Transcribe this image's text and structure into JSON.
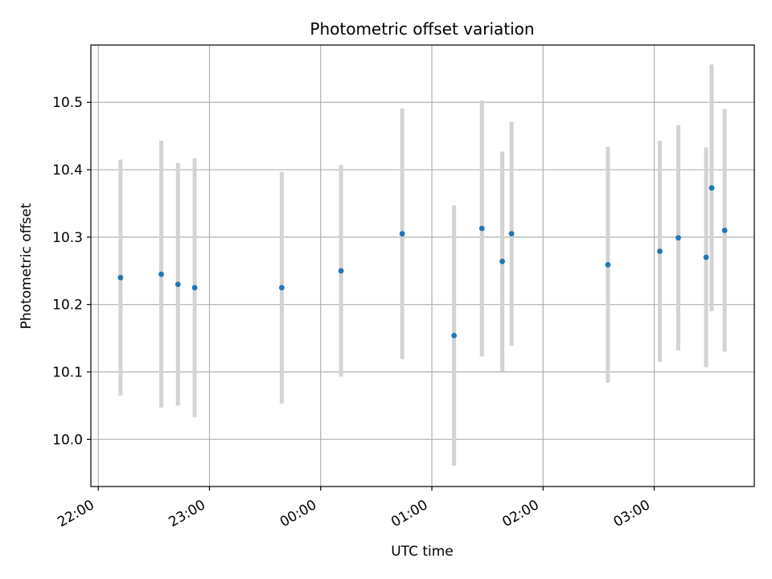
{
  "chart_data": {
    "type": "scatter",
    "title": "Photometric offset variation",
    "xlabel": "UTC time",
    "ylabel": "Photometric offset",
    "x_unit": "HH:MM UTC",
    "xlim": [
      "21:56",
      "03:54"
    ],
    "ylim": [
      9.93,
      10.585
    ],
    "x_ticks": [
      "22:00",
      "23:00",
      "00:00",
      "01:00",
      "02:00",
      "03:00"
    ],
    "y_ticks": [
      10.0,
      10.1,
      10.2,
      10.3,
      10.4,
      10.5
    ],
    "y_tick_labels": [
      "10.0",
      "10.1",
      "10.2",
      "10.3",
      "10.4",
      "10.5"
    ],
    "grid": true,
    "point_color": "#1f77b4",
    "errorbar_color": "#d3d3d3",
    "points": [
      {
        "x": "22:12",
        "y": 10.24,
        "err": 0.175
      },
      {
        "x": "22:34",
        "y": 10.245,
        "err": 0.198
      },
      {
        "x": "22:43",
        "y": 10.23,
        "err": 0.18
      },
      {
        "x": "22:52",
        "y": 10.225,
        "err": 0.192
      },
      {
        "x": "23:39",
        "y": 10.225,
        "err": 0.172
      },
      {
        "x": "00:11",
        "y": 10.25,
        "err": 0.157
      },
      {
        "x": "00:44",
        "y": 10.305,
        "err": 0.186
      },
      {
        "x": "01:12",
        "y": 10.154,
        "err": 0.193
      },
      {
        "x": "01:27",
        "y": 10.313,
        "err": 0.19
      },
      {
        "x": "01:38",
        "y": 10.264,
        "err": 0.163
      },
      {
        "x": "01:43",
        "y": 10.305,
        "err": 0.166
      },
      {
        "x": "02:35",
        "y": 10.259,
        "err": 0.175
      },
      {
        "x": "03:03",
        "y": 10.279,
        "err": 0.164
      },
      {
        "x": "03:13",
        "y": 10.299,
        "err": 0.167
      },
      {
        "x": "03:28",
        "y": 10.27,
        "err": 0.163
      },
      {
        "x": "03:31",
        "y": 10.373,
        "err": 0.183
      },
      {
        "x": "03:38",
        "y": 10.31,
        "err": 0.18
      }
    ]
  }
}
